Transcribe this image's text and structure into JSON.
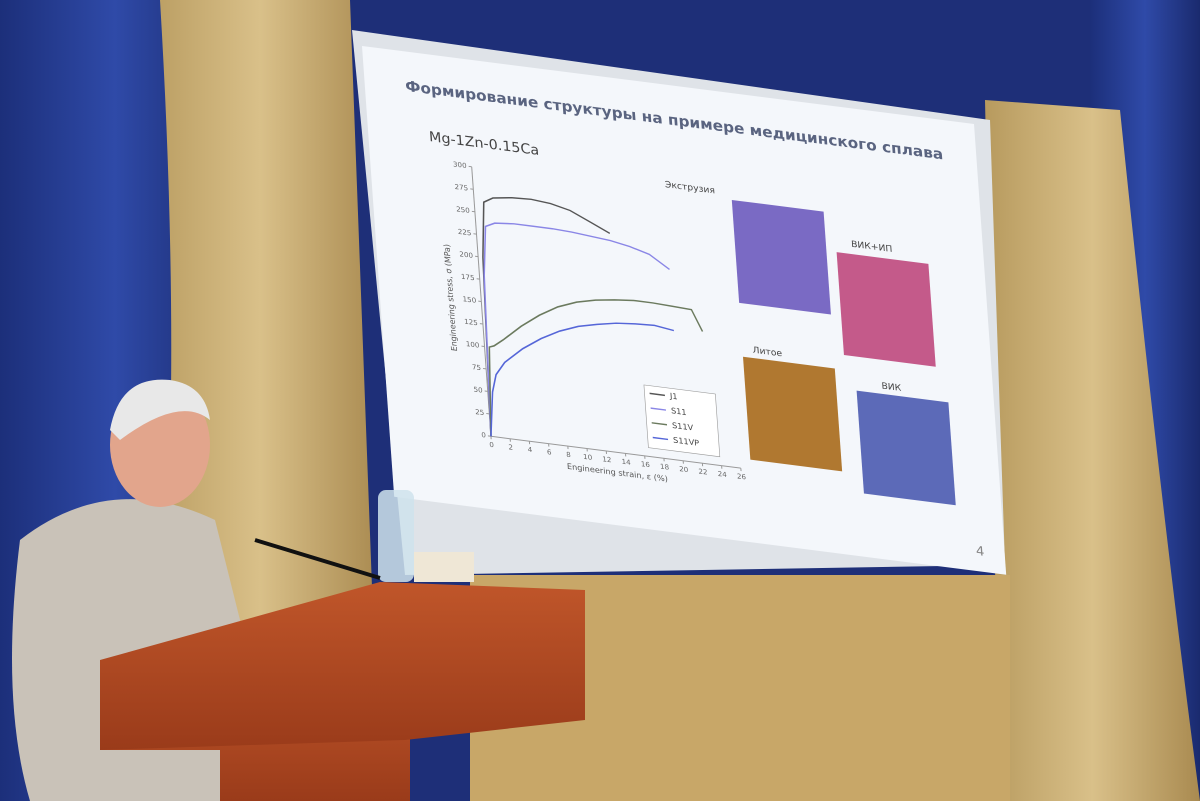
{
  "slide": {
    "title": "Формирование структуры на примере медицинского сплава",
    "number": 4,
    "micrographs": [
      "Экструзия",
      "ВИК+ИП",
      "Литое",
      "ВИК"
    ]
  },
  "chart_data": {
    "type": "line",
    "title": "Mg-1Zn-0.15Ca",
    "x_label": "Engineering strain, ε (%)",
    "y_label": "Engineering stress, σ (MPa)",
    "x": [
      0,
      0.5,
      1,
      2,
      4,
      6,
      8,
      10,
      12,
      14,
      16,
      18,
      20,
      22,
      23
    ],
    "series": [
      {
        "name": "J1",
        "color": "#555555",
        "values": [
          0,
          200,
          262,
          268,
          271,
          272,
          270,
          265,
          255,
          245,
          null,
          null,
          null,
          null,
          null
        ]
      },
      {
        "name": "S11",
        "color": "#8a86e6",
        "values": [
          0,
          180,
          235,
          240,
          242,
          242,
          242,
          241,
          239,
          237,
          233,
          227,
          213,
          null,
          null
        ]
      },
      {
        "name": "S11V",
        "color": "#6b7a5e",
        "values": [
          0,
          100,
          102,
          110,
          128,
          143,
          155,
          163,
          168,
          171,
          173,
          173,
          172,
          171,
          148
        ]
      },
      {
        "name": "S11VP",
        "color": "#5566d8",
        "values": [
          0,
          50,
          70,
          85,
          103,
          117,
          128,
          136,
          141,
          145,
          147,
          148,
          145,
          null,
          null
        ]
      }
    ],
    "xlim": [
      0,
      26
    ],
    "ylim": [
      0,
      300
    ],
    "xticks": [
      0,
      2,
      4,
      6,
      8,
      10,
      12,
      14,
      16,
      18,
      20,
      22,
      24,
      26
    ],
    "yticks": [
      0,
      25,
      50,
      75,
      100,
      125,
      150,
      175,
      200,
      225,
      250,
      275,
      300
    ]
  }
}
